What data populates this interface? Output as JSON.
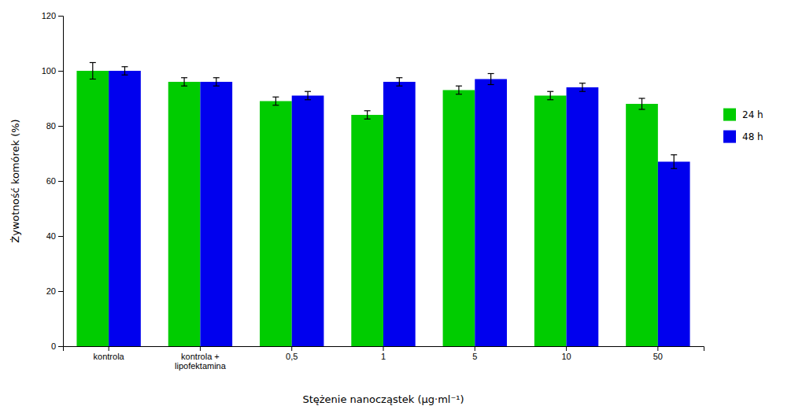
{
  "chart_data": {
    "type": "bar",
    "xlabel": "Stężenie nanocząstek (μg·ml⁻¹)",
    "ylabel": "Żywotność komórek (%)",
    "categories": [
      "kontrola",
      "kontrola +\nlipofektamina",
      "0,5",
      "1",
      "5",
      "10",
      "50"
    ],
    "series": [
      {
        "name": "24 h",
        "color": "#00CC00",
        "values": [
          100,
          96,
          89,
          84,
          93,
          91,
          88
        ],
        "errors": [
          3.0,
          1.5,
          1.5,
          1.5,
          1.5,
          1.5,
          2.0
        ]
      },
      {
        "name": "48 h",
        "color": "#0000EE",
        "values": [
          100,
          96,
          91,
          96,
          97,
          94,
          67
        ],
        "errors": [
          1.5,
          1.5,
          1.5,
          1.5,
          2.0,
          1.5,
          2.5
        ]
      }
    ],
    "ylim": [
      0,
      120
    ],
    "yticks": [
      0,
      20,
      40,
      60,
      80,
      100,
      120
    ],
    "grid": false,
    "legend": "right"
  }
}
